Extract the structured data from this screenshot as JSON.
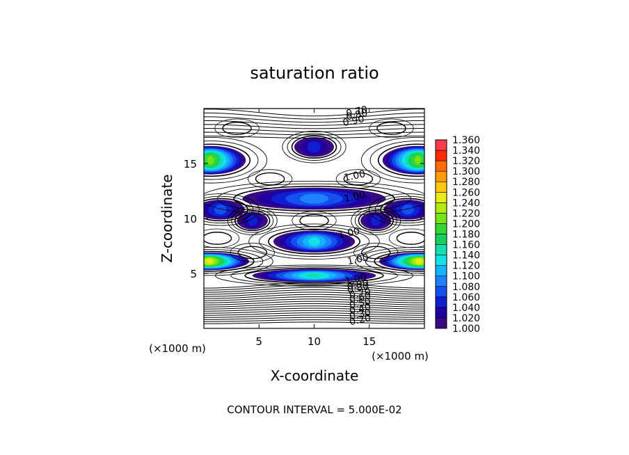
{
  "chart_data": {
    "type": "heatmap",
    "title": "saturation ratio",
    "xlabel": "X-coordinate",
    "ylabel": "Z-coordinate",
    "x_units_left": "(×1000 m)",
    "x_units_right": "(×1000 m)",
    "xlim": [
      0,
      20
    ],
    "ylim": [
      0,
      20
    ],
    "xticks": [
      5,
      10,
      15
    ],
    "yticks": [
      5,
      10,
      15
    ],
    "footer": "CONTOUR INTERVAL = 5.000E-02",
    "colorbar": {
      "levels": [
        "1.000",
        "1.020",
        "1.040",
        "1.060",
        "1.080",
        "1.100",
        "1.120",
        "1.140",
        "1.160",
        "1.180",
        "1.200",
        "1.220",
        "1.240",
        "1.260",
        "1.280",
        "1.300",
        "1.320",
        "1.340",
        "1.360"
      ],
      "colors": [
        "#3a0a82",
        "#2000a0",
        "#1020d0",
        "#1450f0",
        "#1e82ff",
        "#10b4ff",
        "#14e0e8",
        "#10e0b0",
        "#18d060",
        "#34d834",
        "#74e414",
        "#b4ec10",
        "#e8ec14",
        "#ffc810",
        "#ff9c08",
        "#ff6a06",
        "#ff2c0c",
        "#ff3a4a",
        "#ff8a96"
      ]
    },
    "contour_labels": [
      "0.70",
      "0.80",
      "0.90",
      "1.00",
      "1.00",
      "1.00",
      "1.00",
      "1.00",
      "0.90",
      "0.80",
      "0.70",
      "0.60",
      "0.50",
      "0.40",
      "0.30",
      "0.20"
    ],
    "regions": [
      {
        "cx": 10.0,
        "cz": 16.5,
        "rx": 1.8,
        "rz": 0.9,
        "peak": 1.06
      },
      {
        "cx": 10.0,
        "cz": 11.8,
        "rx": 6.5,
        "rz": 1.0,
        "peak": 1.1
      },
      {
        "cx": 0.6,
        "cz": 15.3,
        "rx": 3.2,
        "rz": 1.3,
        "peak": 1.22
      },
      {
        "cx": 19.4,
        "cz": 15.3,
        "rx": 3.2,
        "rz": 1.3,
        "peak": 1.22
      },
      {
        "cx": 1.5,
        "cz": 10.8,
        "rx": 2.2,
        "rz": 0.9,
        "peak": 1.08
      },
      {
        "cx": 18.5,
        "cz": 10.8,
        "rx": 2.2,
        "rz": 0.9,
        "peak": 1.08
      },
      {
        "cx": 4.4,
        "cz": 9.8,
        "rx": 1.4,
        "rz": 0.8,
        "peak": 1.06
      },
      {
        "cx": 15.6,
        "cz": 9.8,
        "rx": 1.4,
        "rz": 0.8,
        "peak": 1.06
      },
      {
        "cx": 10.0,
        "cz": 7.9,
        "rx": 3.7,
        "rz": 1.0,
        "peak": 1.14
      },
      {
        "cx": 0.5,
        "cz": 6.1,
        "rx": 3.6,
        "rz": 0.8,
        "peak": 1.26
      },
      {
        "cx": 19.5,
        "cz": 6.1,
        "rx": 3.6,
        "rz": 0.8,
        "peak": 1.26
      },
      {
        "cx": 10.0,
        "cz": 4.8,
        "rx": 5.6,
        "rz": 0.6,
        "peak": 1.16
      }
    ]
  }
}
